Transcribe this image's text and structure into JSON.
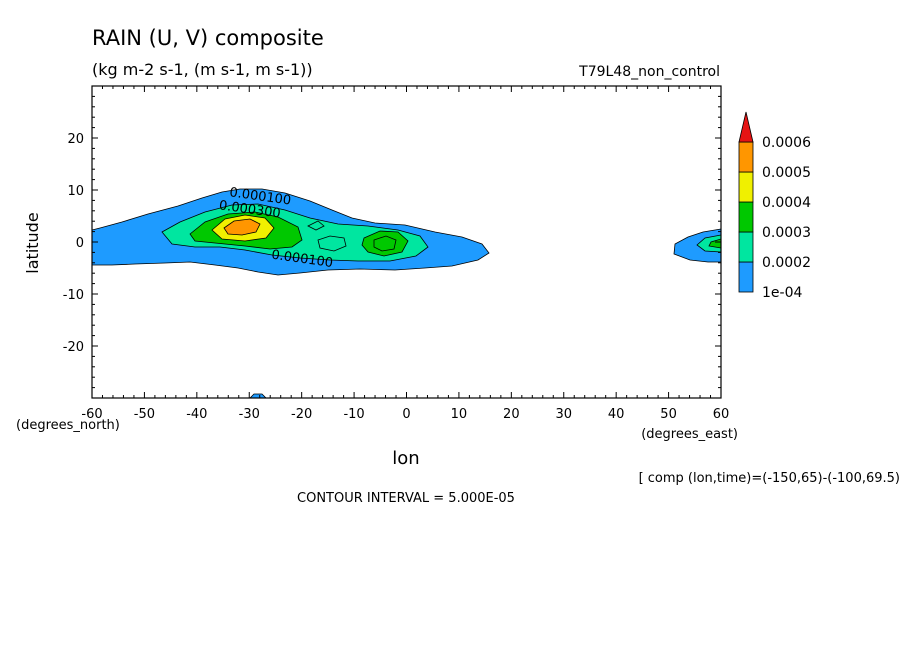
{
  "chart_data": {
    "type": "heatmap",
    "title": "RAIN (U, V) composite",
    "units": "(kg m-2 s-1, (m s-1, m s-1))",
    "run_label": "T79L48_non_control",
    "xlabel": "lon",
    "ylabel": "latitude",
    "x_unit_label": "(degrees_east)",
    "y_unit_label": "(degrees_north)",
    "xlim": [
      -60,
      60
    ],
    "ylim": [
      -30,
      30
    ],
    "x_ticks": [
      -60,
      -50,
      -40,
      -30,
      -20,
      -10,
      0,
      10,
      20,
      30,
      40,
      50,
      60
    ],
    "x_tick_labels": [
      "-60",
      "-50",
      "-40",
      "-30",
      "-20",
      "-10",
      "0",
      "10",
      "20",
      "30",
      "40",
      "50",
      "60"
    ],
    "y_ticks": [
      20,
      10,
      0,
      -10,
      -20
    ],
    "y_tick_labels": [
      "20",
      "10",
      "0",
      "-10",
      "-20"
    ],
    "contour_labels": [
      {
        "text": "0.000100",
        "lon": -28,
        "lat": 8
      },
      {
        "text": "0.000300",
        "lon": -30,
        "lat": 5.5
      },
      {
        "text": "0.000100",
        "lon": -20,
        "lat": -4
      }
    ],
    "colorbar": {
      "levels": [
        "1e-04",
        "0.0002",
        "0.0003",
        "0.0004",
        "0.0005",
        "0.0006"
      ],
      "colors": [
        "#1e9bff",
        "#00e6a0",
        "#00c800",
        "#f0f000",
        "#ff9600",
        "#e61414"
      ]
    },
    "contour_interval": "CONTOUR INTERVAL = 5.000E-05",
    "composite_note": "[ comp (lon,time)=(-150,65)-(-100,69.5)"
  }
}
